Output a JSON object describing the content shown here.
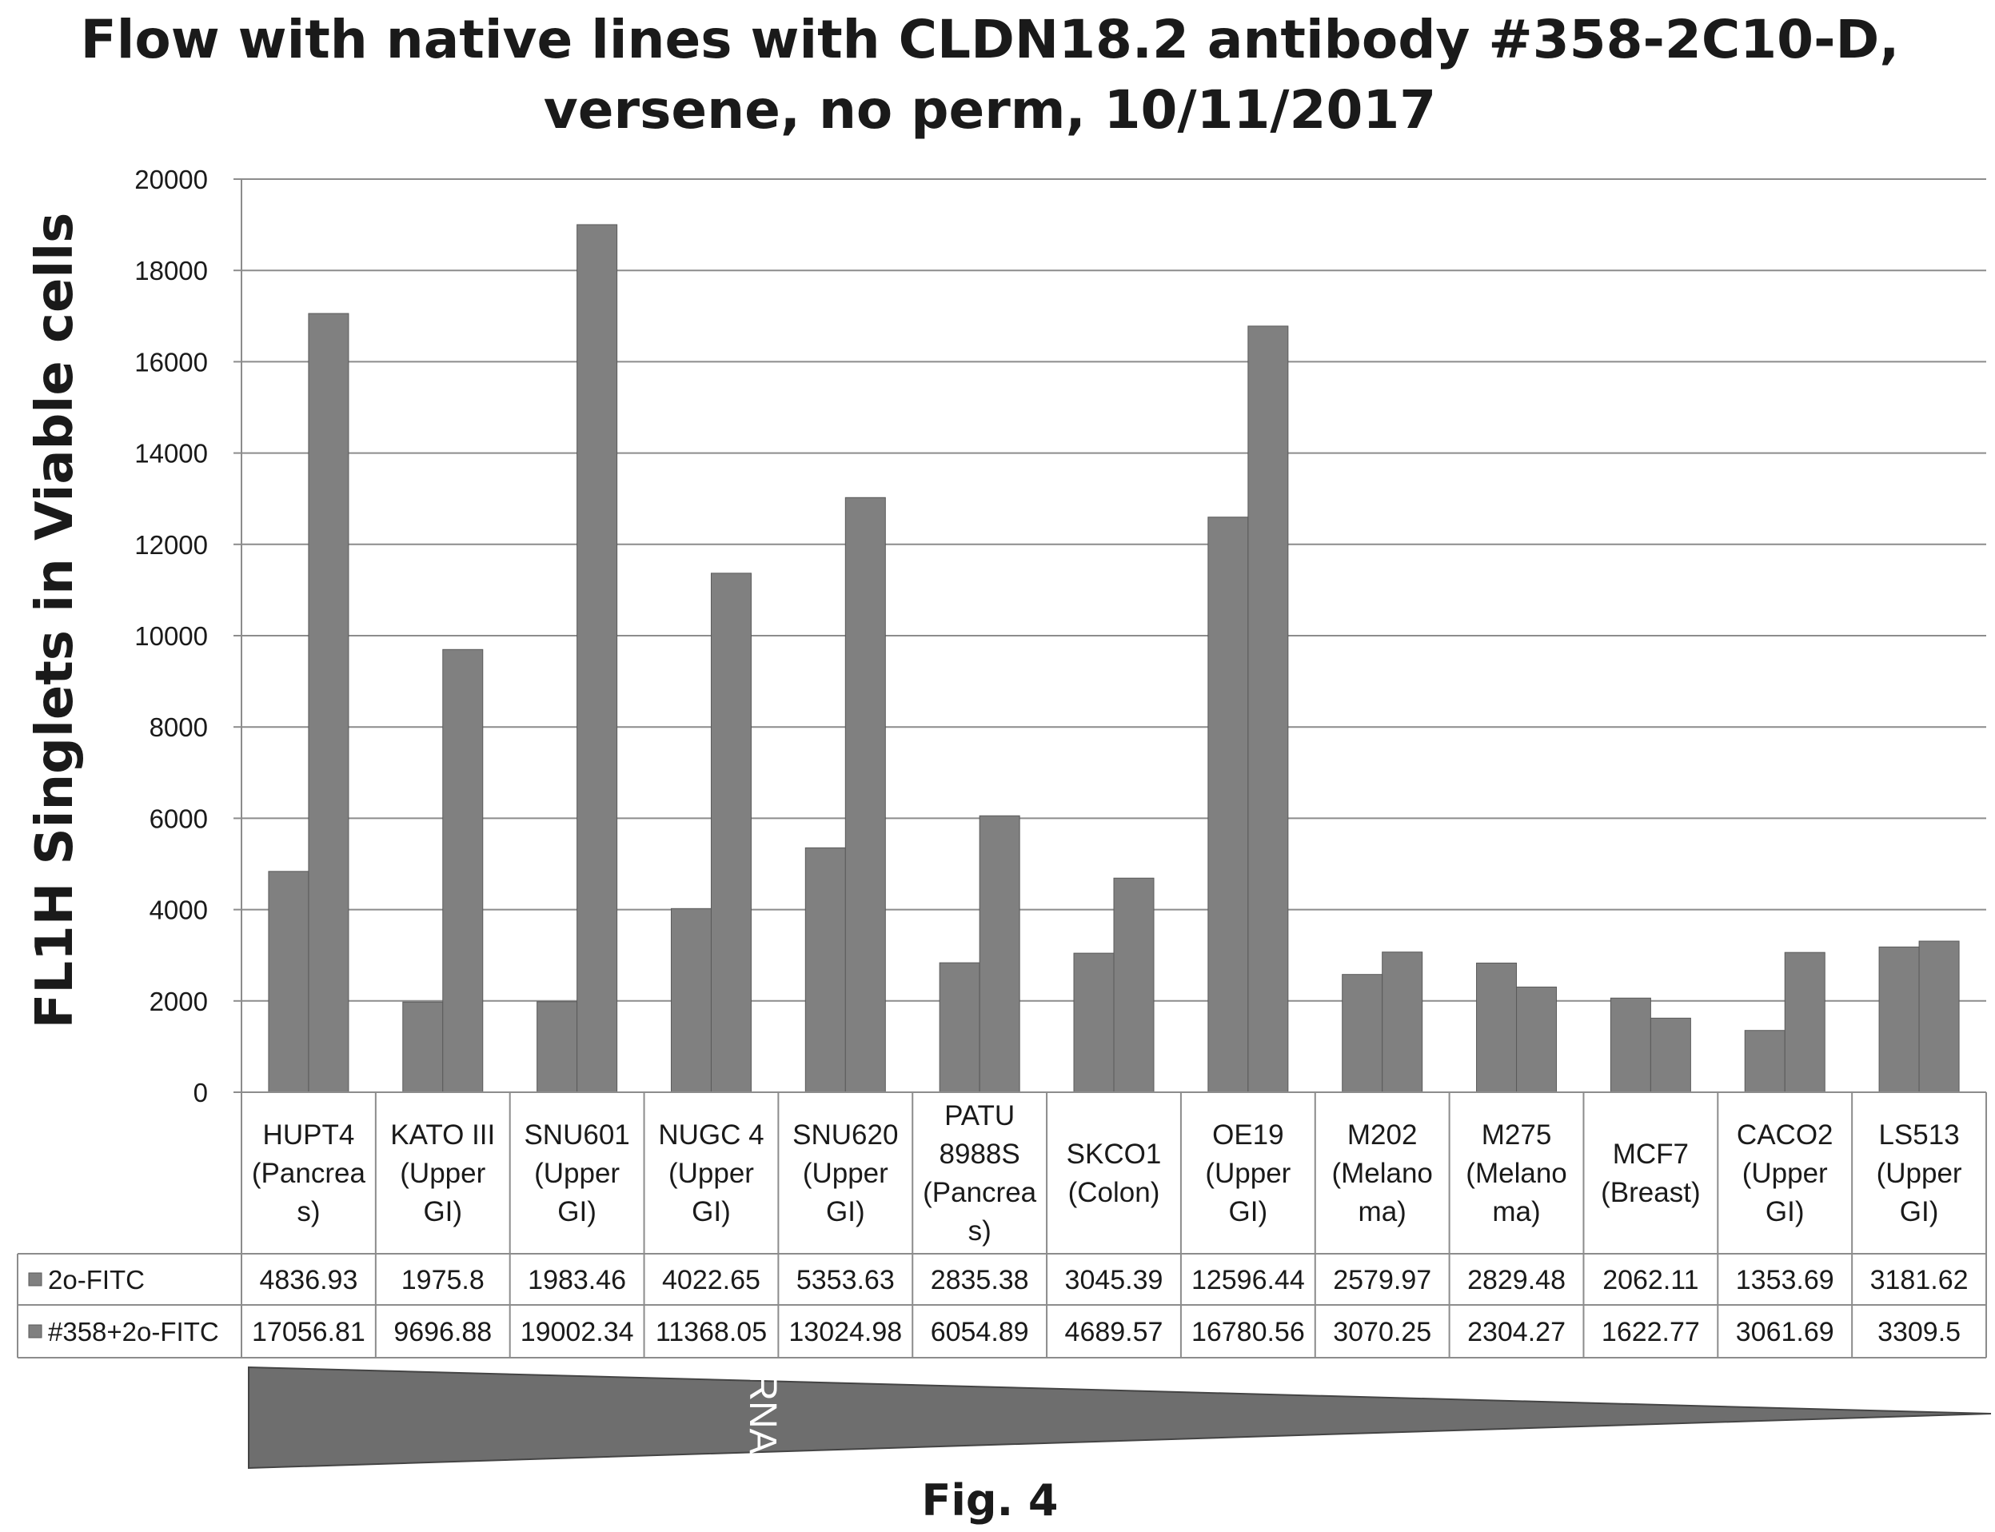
{
  "title_lines": [
    "Flow with native lines with CLDN18.2 antibody #358-2C10-D,",
    "versene, no perm, 10/11/2017"
  ],
  "figure_label": "Fig. 4",
  "wedge_label": "RNA",
  "colors": {
    "bar": "#808080",
    "bar_edge": "#5a5a5a",
    "grid": "#8c8c8c",
    "wedge": "#6e6e6e"
  },
  "chart_data": {
    "type": "bar",
    "title": "Flow with native lines with CLDN18.2 antibody #358-2C10-D, versene, no perm, 10/11/2017",
    "ylabel": "FL1H  Singlets in Viable cells",
    "xlabel": "",
    "ylim": [
      0,
      20000
    ],
    "yticks": [
      0,
      2000,
      4000,
      6000,
      8000,
      10000,
      12000,
      14000,
      16000,
      18000,
      20000
    ],
    "grid": true,
    "legend": "data table",
    "categories": [
      [
        "HUPT4",
        "(Pancrea",
        "s)"
      ],
      [
        "KATO III",
        "(Upper",
        "GI)"
      ],
      [
        "SNU601",
        "(Upper",
        "GI)"
      ],
      [
        "NUGC 4",
        "(Upper",
        "GI)"
      ],
      [
        "SNU620",
        "(Upper",
        "GI)"
      ],
      [
        "PATU",
        "8988S",
        "(Pancrea",
        "s)"
      ],
      [
        "SKCO1",
        "(Colon)"
      ],
      [
        "OE19",
        "(Upper",
        "GI)"
      ],
      [
        "M202",
        "(Melano",
        "ma)"
      ],
      [
        "M275",
        "(Melano",
        "ma)"
      ],
      [
        "MCF7",
        "(Breast)"
      ],
      [
        "CACO2",
        "(Upper",
        "GI)"
      ],
      [
        "LS513",
        "(Upper",
        "GI)"
      ]
    ],
    "series": [
      {
        "name": "2o-FITC",
        "values": [
          4836.93,
          1975.8,
          1983.46,
          4022.65,
          5353.63,
          2835.38,
          3045.39,
          12596.44,
          2579.97,
          2829.48,
          2062.11,
          1353.69,
          3181.62
        ],
        "labels": [
          "4836.93",
          "1975.8",
          "1983.46",
          "4022.65",
          "5353.63",
          "2835.38",
          "3045.39",
          "12596.44",
          "2579.97",
          "2829.48",
          "2062.11",
          "1353.69",
          "3181.62"
        ]
      },
      {
        "name": "#358+2o-FITC",
        "values": [
          17056.81,
          9696.88,
          19002.34,
          11368.05,
          13024.98,
          6054.89,
          4689.57,
          16780.56,
          3070.25,
          2304.27,
          1622.77,
          3061.69,
          3309.5
        ],
        "labels": [
          "17056.81",
          "9696.88",
          "19002.34",
          "11368.05",
          "13024.98",
          "6054.89",
          "4689.57",
          "16780.56",
          "3070.25",
          "2304.27",
          "1622.77",
          "3061.69",
          "3309.5"
        ]
      }
    ]
  }
}
